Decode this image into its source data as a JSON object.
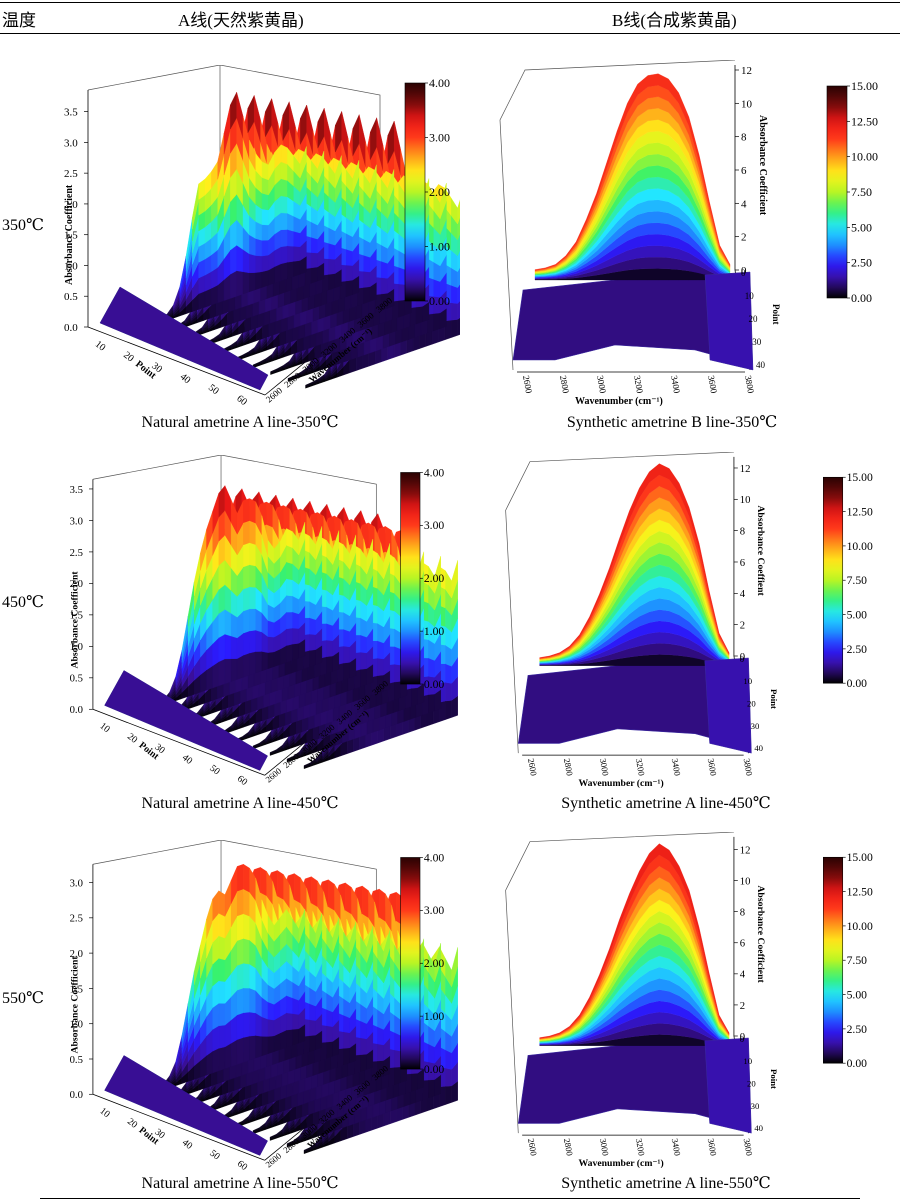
{
  "table": {
    "col_temp": "温度",
    "col_a": "A线(天然紫黄晶)",
    "col_b": "B线(合成紫黄晶)"
  },
  "rows": [
    {
      "temp": "350℃",
      "left_caption": "Natural ametrine A line-350℃",
      "right_caption": "Synthetic ametrine B line-350℃",
      "left_chart": {
        "type": "surface3d",
        "zlabel": "Absorbance Coefficient",
        "xlabel": "Point",
        "ylabel": "Wavenumber (cm⁻¹)",
        "z_ticks": [
          "0.0",
          "0.5",
          "1.0",
          "1.5",
          "2.0",
          "2.5",
          "3.0",
          "3.5"
        ],
        "x_ticks": [
          "10",
          "20",
          "30",
          "40",
          "50",
          "60"
        ],
        "y_ticks": [
          "2600",
          "2800",
          "3000",
          "3200",
          "3400",
          "3600",
          "3800"
        ],
        "colorbar_ticks": [
          "0.00",
          "1.00",
          "2.00",
          "3.00",
          "4.00"
        ],
        "zlim": [
          0,
          3.9
        ],
        "colorbar_range": [
          0,
          4
        ],
        "profile": [
          0.05,
          0.06,
          0.08,
          0.12,
          0.25,
          0.55,
          1.1,
          1.8,
          2.4,
          2.45,
          2.55,
          2.7,
          3.2,
          3.7,
          3.9,
          3.4,
          2.9,
          2.6,
          2.4,
          2.3,
          2.5,
          2.6,
          2.5,
          2.3,
          2.1,
          2.4
        ]
      },
      "right_chart": {
        "type": "surface3d",
        "zlabel": "Absorbance Coefficient",
        "xlabel": "Wavenumber (cm⁻¹)",
        "ylabel": "Point",
        "z_ticks": [
          "0",
          "2",
          "4",
          "6",
          "8",
          "10",
          "12"
        ],
        "x_ticks": [
          "2600",
          "2800",
          "3000",
          "3200",
          "3400",
          "3600",
          "3800"
        ],
        "y_ticks": [
          "0",
          "10",
          "20",
          "30",
          "40"
        ],
        "colorbar_ticks": [
          "0.00",
          "2.50",
          "5.00",
          "7.50",
          "10.00",
          "12.50",
          "15.00"
        ],
        "zlim": [
          0,
          12
        ],
        "colorbar_range": [
          0,
          15
        ],
        "profile": [
          0.6,
          0.7,
          0.9,
          1.4,
          2.2,
          3.5,
          5.0,
          6.8,
          8.6,
          10.2,
          11.3,
          11.8,
          11.9,
          11.6,
          10.8,
          9.4,
          7.2,
          4.5,
          2.0,
          0.9
        ]
      }
    },
    {
      "temp": "450℃",
      "left_caption": "Natural ametrine A line-450℃",
      "right_caption": "Synthetic ametrine A line-450℃",
      "left_chart": {
        "type": "surface3d",
        "zlabel": "Absorbance Coefficient",
        "xlabel": "Point",
        "ylabel": "Wavenumber (cm⁻¹)",
        "z_ticks": [
          "0.0",
          "0.5",
          "1.0",
          "1.5",
          "2.0",
          "2.5",
          "3.0",
          "3.5"
        ],
        "x_ticks": [
          "10",
          "20",
          "30",
          "40",
          "50",
          "60"
        ],
        "y_ticks": [
          "2600",
          "2800",
          "3000",
          "3200",
          "3400",
          "3600",
          "3800"
        ],
        "colorbar_ticks": [
          "0.00",
          "1.00",
          "2.00",
          "3.00",
          "4.00"
        ],
        "zlim": [
          0,
          3.7
        ],
        "colorbar_range": [
          0,
          4
        ],
        "profile": [
          0.05,
          0.06,
          0.1,
          0.2,
          0.45,
          0.9,
          1.5,
          2.1,
          2.6,
          3.0,
          3.3,
          3.6,
          3.7,
          3.4,
          3.1,
          3.3,
          3.3,
          3.2,
          2.9,
          2.4,
          2.2,
          2.3,
          2.5,
          2.4,
          2.2,
          2.5
        ]
      },
      "right_chart": {
        "type": "surface3d",
        "zlabel": "Absorbance Coeffient",
        "xlabel": "Wavenumber (cm⁻¹)",
        "ylabel": "Point",
        "z_ticks": [
          "0",
          "2",
          "4",
          "6",
          "8",
          "10",
          "12"
        ],
        "x_ticks": [
          "2600",
          "2800",
          "3000",
          "3200",
          "3400",
          "3600",
          "3800"
        ],
        "y_ticks": [
          "0",
          "10",
          "20",
          "30",
          "40"
        ],
        "colorbar_ticks": [
          "0.00",
          "2.50",
          "5.00",
          "7.50",
          "10.00",
          "12.50",
          "15.00"
        ],
        "zlim": [
          0,
          12.4
        ],
        "colorbar_range": [
          0,
          15
        ],
        "profile": [
          0.5,
          0.6,
          0.8,
          1.2,
          1.9,
          3.0,
          4.4,
          6.0,
          7.8,
          9.5,
          10.9,
          11.9,
          12.4,
          12.1,
          11.2,
          9.7,
          7.5,
          4.6,
          2.0,
          0.8
        ]
      }
    },
    {
      "temp": "550℃",
      "left_caption": "Natural ametrine A line-550℃",
      "right_caption": "Synthetic ametrine A line-550℃",
      "left_chart": {
        "type": "surface3d",
        "zlabel": "Absorbance Coefficient",
        "xlabel": "Point",
        "ylabel": "Wavenumber (cm⁻¹)",
        "z_ticks": [
          "0.0",
          "0.5",
          "1.0",
          "1.5",
          "2.0",
          "2.5",
          "3.0"
        ],
        "x_ticks": [
          "10",
          "20",
          "30",
          "40",
          "50",
          "60"
        ],
        "y_ticks": [
          "2600",
          "2800",
          "3000",
          "3200",
          "3400",
          "3600",
          "3800"
        ],
        "colorbar_ticks": [
          "0.00",
          "1.00",
          "2.00",
          "3.00",
          "4.00"
        ],
        "zlim": [
          0,
          3.3
        ],
        "colorbar_range": [
          0,
          4
        ],
        "profile": [
          0.05,
          0.06,
          0.1,
          0.2,
          0.4,
          0.8,
          1.3,
          1.8,
          2.2,
          2.6,
          2.9,
          3.0,
          2.9,
          3.1,
          3.3,
          3.3,
          3.2,
          3.0,
          2.6,
          2.3,
          2.1,
          2.2,
          2.3,
          2.1,
          1.9,
          2.2
        ]
      },
      "right_chart": {
        "type": "surface3d",
        "zlabel": "Absorbance Coefficient",
        "xlabel": "Wavenumber (cm⁻¹)",
        "ylabel": "Point",
        "z_ticks": [
          "0",
          "2",
          "4",
          "6",
          "8",
          "10",
          "12"
        ],
        "x_ticks": [
          "2600",
          "2800",
          "3000",
          "3200",
          "3400",
          "3600",
          "3800"
        ],
        "y_ticks": [
          "0",
          "10",
          "20",
          "30",
          "40"
        ],
        "colorbar_ticks": [
          "0.00",
          "2.50",
          "5.00",
          "7.50",
          "10.00",
          "12.50",
          "15.00"
        ],
        "zlim": [
          0,
          12.5
        ],
        "colorbar_range": [
          0,
          15
        ],
        "profile": [
          0.5,
          0.6,
          0.8,
          1.2,
          1.9,
          3.0,
          4.4,
          6.0,
          7.8,
          9.4,
          10.8,
          11.9,
          12.5,
          12.1,
          11.1,
          9.6,
          7.3,
          4.5,
          1.9,
          0.8
        ]
      }
    }
  ],
  "colormap": [
    "#000000",
    "#3a0f9a",
    "#2b1bff",
    "#1e90ff",
    "#22e6ff",
    "#39f26b",
    "#b8f524",
    "#fff21a",
    "#ff9c1a",
    "#ff3a1a",
    "#e81616",
    "#6e0a0a",
    "#2a0202"
  ]
}
